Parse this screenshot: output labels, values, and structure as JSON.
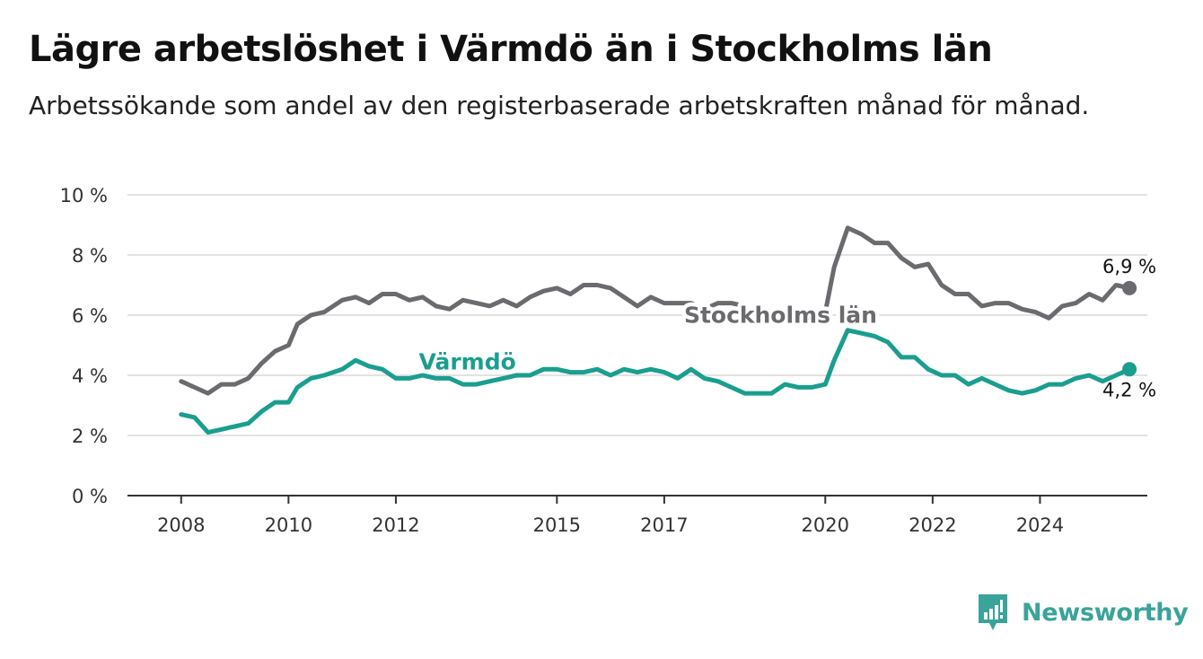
{
  "header": {
    "title": "Lägre arbetslöshet i Värmdö än i Stockholms län",
    "subtitle": "Arbetssökande som andel av den registerbaserade arbetskraften månad för månad."
  },
  "brand": {
    "name": "Newsworthy",
    "icon": "newsworthy-logo-icon",
    "color": "#3aa39a"
  },
  "chart_data": {
    "type": "line",
    "title": "Lägre arbetslöshet i Värmdö än i Stockholms län",
    "subtitle": "Arbetssökande som andel av den registerbaserade arbetskraften månad för månad.",
    "ylim": [
      0,
      10
    ],
    "yticks": [
      0,
      2,
      4,
      6,
      8,
      10
    ],
    "ytick_labels": [
      "0 %",
      "2 %",
      "4 %",
      "6 %",
      "8 %",
      "10 %"
    ],
    "xlim": [
      "2007-01",
      "2026-01"
    ],
    "xticks": [
      "2008-01",
      "2010-01",
      "2012-01",
      "2015-01",
      "2017-01",
      "2020-01",
      "2022-01",
      "2024-01"
    ],
    "xtick_labels": [
      "2008",
      "2010",
      "2012",
      "2015",
      "2017",
      "2020",
      "2022",
      "2024"
    ],
    "grid": true,
    "legend": "inline labels",
    "series": [
      {
        "name": "Stockholms län",
        "color": "#6b6b6f",
        "end_label": "6,9 %",
        "points": [
          [
            "2008-01",
            3.8
          ],
          [
            "2008-04",
            3.6
          ],
          [
            "2008-07",
            3.4
          ],
          [
            "2008-10",
            3.7
          ],
          [
            "2009-01",
            3.7
          ],
          [
            "2009-04",
            3.9
          ],
          [
            "2009-07",
            4.4
          ],
          [
            "2009-10",
            4.8
          ],
          [
            "2010-01",
            5.0
          ],
          [
            "2010-03",
            5.7
          ],
          [
            "2010-06",
            6.0
          ],
          [
            "2010-09",
            6.1
          ],
          [
            "2011-01",
            6.5
          ],
          [
            "2011-04",
            6.6
          ],
          [
            "2011-07",
            6.4
          ],
          [
            "2011-10",
            6.7
          ],
          [
            "2012-01",
            6.7
          ],
          [
            "2012-04",
            6.5
          ],
          [
            "2012-07",
            6.6
          ],
          [
            "2012-10",
            6.3
          ],
          [
            "2013-01",
            6.2
          ],
          [
            "2013-04",
            6.5
          ],
          [
            "2013-07",
            6.4
          ],
          [
            "2013-10",
            6.3
          ],
          [
            "2014-01",
            6.5
          ],
          [
            "2014-04",
            6.3
          ],
          [
            "2014-07",
            6.6
          ],
          [
            "2014-10",
            6.8
          ],
          [
            "2015-01",
            6.9
          ],
          [
            "2015-04",
            6.7
          ],
          [
            "2015-07",
            7.0
          ],
          [
            "2015-10",
            7.0
          ],
          [
            "2016-01",
            6.9
          ],
          [
            "2016-04",
            6.6
          ],
          [
            "2016-07",
            6.3
          ],
          [
            "2016-10",
            6.6
          ],
          [
            "2017-01",
            6.4
          ],
          [
            "2017-04",
            6.4
          ],
          [
            "2017-07",
            6.4
          ],
          [
            "2017-10",
            6.2
          ],
          [
            "2018-01",
            6.4
          ],
          [
            "2018-04",
            6.4
          ],
          [
            "2018-07",
            6.3
          ],
          [
            "2018-10",
            6.0
          ],
          [
            "2019-01",
            6.1
          ],
          [
            "2019-04",
            6.0
          ],
          [
            "2019-07",
            6.1
          ],
          [
            "2019-10",
            6.0
          ],
          [
            "2020-01",
            6.1
          ],
          [
            "2020-03",
            7.6
          ],
          [
            "2020-06",
            8.9
          ],
          [
            "2020-09",
            8.7
          ],
          [
            "2020-12",
            8.4
          ],
          [
            "2021-03",
            8.4
          ],
          [
            "2021-06",
            7.9
          ],
          [
            "2021-09",
            7.6
          ],
          [
            "2021-12",
            7.7
          ],
          [
            "2022-03",
            7.0
          ],
          [
            "2022-06",
            6.7
          ],
          [
            "2022-09",
            6.7
          ],
          [
            "2022-12",
            6.3
          ],
          [
            "2023-03",
            6.4
          ],
          [
            "2023-06",
            6.4
          ],
          [
            "2023-09",
            6.2
          ],
          [
            "2023-12",
            6.1
          ],
          [
            "2024-03",
            5.9
          ],
          [
            "2024-06",
            6.3
          ],
          [
            "2024-09",
            6.4
          ],
          [
            "2024-12",
            6.7
          ],
          [
            "2025-03",
            6.5
          ],
          [
            "2025-06",
            7.0
          ],
          [
            "2025-09",
            6.9
          ]
        ]
      },
      {
        "name": "Värmdö",
        "color": "#1a9e8f",
        "end_label": "4,2 %",
        "points": [
          [
            "2008-01",
            2.7
          ],
          [
            "2008-04",
            2.6
          ],
          [
            "2008-07",
            2.1
          ],
          [
            "2008-10",
            2.2
          ],
          [
            "2009-01",
            2.3
          ],
          [
            "2009-04",
            2.4
          ],
          [
            "2009-07",
            2.8
          ],
          [
            "2009-10",
            3.1
          ],
          [
            "2010-01",
            3.1
          ],
          [
            "2010-03",
            3.6
          ],
          [
            "2010-06",
            3.9
          ],
          [
            "2010-09",
            4.0
          ],
          [
            "2011-01",
            4.2
          ],
          [
            "2011-04",
            4.5
          ],
          [
            "2011-07",
            4.3
          ],
          [
            "2011-10",
            4.2
          ],
          [
            "2012-01",
            3.9
          ],
          [
            "2012-04",
            3.9
          ],
          [
            "2012-07",
            4.0
          ],
          [
            "2012-10",
            3.9
          ],
          [
            "2013-01",
            3.9
          ],
          [
            "2013-04",
            3.7
          ],
          [
            "2013-07",
            3.7
          ],
          [
            "2013-10",
            3.8
          ],
          [
            "2014-01",
            3.9
          ],
          [
            "2014-04",
            4.0
          ],
          [
            "2014-07",
            4.0
          ],
          [
            "2014-10",
            4.2
          ],
          [
            "2015-01",
            4.2
          ],
          [
            "2015-04",
            4.1
          ],
          [
            "2015-07",
            4.1
          ],
          [
            "2015-10",
            4.2
          ],
          [
            "2016-01",
            4.0
          ],
          [
            "2016-04",
            4.2
          ],
          [
            "2016-07",
            4.1
          ],
          [
            "2016-10",
            4.2
          ],
          [
            "2017-01",
            4.1
          ],
          [
            "2017-04",
            3.9
          ],
          [
            "2017-07",
            4.2
          ],
          [
            "2017-10",
            3.9
          ],
          [
            "2018-01",
            3.8
          ],
          [
            "2018-04",
            3.6
          ],
          [
            "2018-07",
            3.4
          ],
          [
            "2018-10",
            3.4
          ],
          [
            "2019-01",
            3.4
          ],
          [
            "2019-04",
            3.7
          ],
          [
            "2019-07",
            3.6
          ],
          [
            "2019-10",
            3.6
          ],
          [
            "2020-01",
            3.7
          ],
          [
            "2020-03",
            4.5
          ],
          [
            "2020-06",
            5.5
          ],
          [
            "2020-09",
            5.4
          ],
          [
            "2020-12",
            5.3
          ],
          [
            "2021-03",
            5.1
          ],
          [
            "2021-06",
            4.6
          ],
          [
            "2021-09",
            4.6
          ],
          [
            "2021-12",
            4.2
          ],
          [
            "2022-03",
            4.0
          ],
          [
            "2022-06",
            4.0
          ],
          [
            "2022-09",
            3.7
          ],
          [
            "2022-12",
            3.9
          ],
          [
            "2023-03",
            3.7
          ],
          [
            "2023-06",
            3.5
          ],
          [
            "2023-09",
            3.4
          ],
          [
            "2023-12",
            3.5
          ],
          [
            "2024-03",
            3.7
          ],
          [
            "2024-06",
            3.7
          ],
          [
            "2024-09",
            3.9
          ],
          [
            "2024-12",
            4.0
          ],
          [
            "2025-03",
            3.8
          ],
          [
            "2025-06",
            4.0
          ],
          [
            "2025-09",
            4.2
          ]
        ]
      }
    ]
  }
}
